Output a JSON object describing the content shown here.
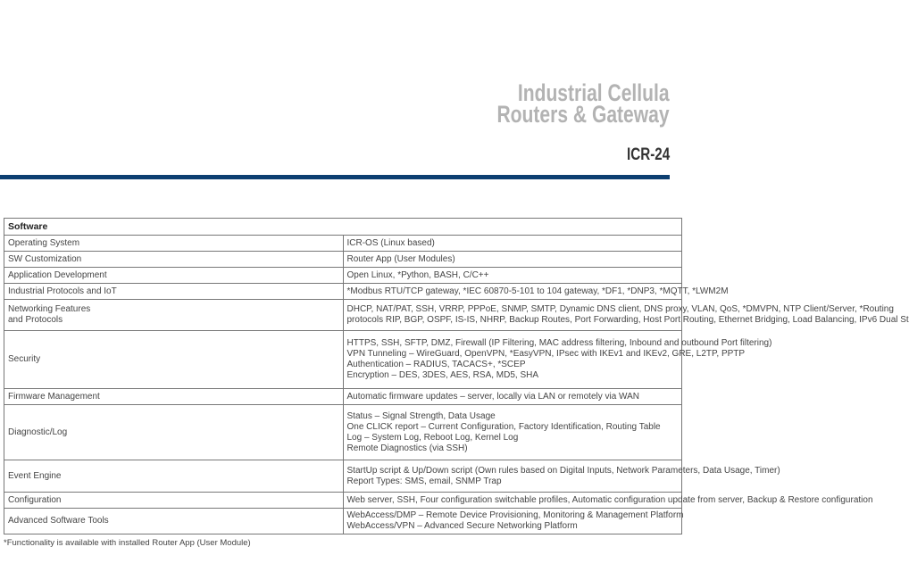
{
  "header": {
    "title_line1": "Industrial Cellula",
    "title_line2": "Routers & Gateway",
    "model": "ICR-24",
    "accent_color": "#0d3f71"
  },
  "table": {
    "section": "Software",
    "rows": [
      {
        "label": "Operating System",
        "lines": [
          "ICR-OS (Linux based)"
        ]
      },
      {
        "label": "SW Customization",
        "lines": [
          "Router App (User Modules)"
        ]
      },
      {
        "label": "Application Development",
        "lines": [
          "Open Linux, *Python, BASH, C/C++"
        ]
      },
      {
        "label": "Industrial Protocols and IoT",
        "lines": [
          "*Modbus RTU/TCP gateway, *IEC 60870-5-101 to 104 gateway, *DF1, *DNP3, *MQTT, *LWM2M"
        ]
      },
      {
        "label_lines": [
          "Networking Features",
          "and Protocols"
        ],
        "lines": [
          "DHCP, NAT/PAT, SSH, VRRP, PPPoE, SNMP, SMTP, Dynamic DNS client, DNS proxy, VLAN, QoS, *DMVPN, NTP Client/Server, *Routing",
          "protocols RIP, BGP, OSPF, IS-IS, NHRP, Backup Routes, Port Forwarding, Host Port Routing, Ethernet Bridging, Load Balancing, IPv6 Dual St"
        ]
      },
      {
        "label": "Security",
        "lines": [
          "HTTPS, SSH, SFTP, DMZ, Firewall (IP Filtering, MAC address filtering, Inbound and outbound Port filtering)",
          "VPN Tunneling – WireGuard, OpenVPN, *EasyVPN, IPsec with IKEv1 and IKEv2, GRE, L2TP, PPTP",
          "Authentication – RADIUS, TACACS+, *SCEP",
          "Encryption – DES, 3DES, AES, RSA, MD5, SHA"
        ]
      },
      {
        "label": "Firmware Management",
        "lines": [
          "Automatic firmware updates – server, locally via LAN or remotely via WAN"
        ]
      },
      {
        "label": "Diagnostic/Log",
        "lines": [
          "Status – Signal Strength, Data Usage",
          "One CLICK report – Current Configuration, Factory Identification, Routing Table",
          "Log – System Log, Reboot Log, Kernel Log",
          "Remote Diagnostics (via SSH)"
        ]
      },
      {
        "label": "Event Engine",
        "lines": [
          "StartUp script & Up/Down script (Own rules based on Digital Inputs, Network Parameters, Data Usage, Timer)",
          "Report Types: SMS, email, SNMP Trap"
        ]
      },
      {
        "label": "Configuration",
        "lines": [
          "Web server, SSH, Four configuration switchable profiles, Automatic configuration update from server, Backup & Restore configuration"
        ]
      },
      {
        "label": "Advanced Software Tools",
        "lines": [
          "WebAccess/DMP – Remote Device Provisioning, Monitoring & Management Platform",
          "WebAccess/VPN – Advanced Secure Networking Platform"
        ]
      }
    ]
  },
  "footnote": "*Functionality is available with installed Router App (User Module)"
}
